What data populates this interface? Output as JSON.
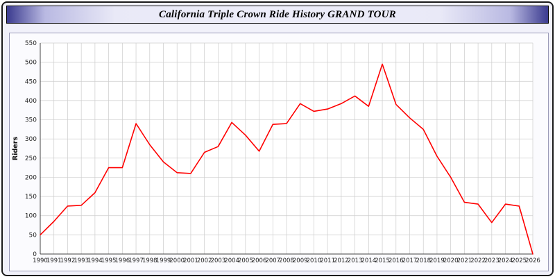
{
  "title_bar": {
    "title": "California Triple Crown Ride History GRAND TOUR"
  },
  "chart_data": {
    "type": "line",
    "title": "California Triple Crown Ride History GRAND TOUR",
    "xlabel": "",
    "ylabel": "Riders",
    "categories": [
      "1990",
      "1991",
      "1992",
      "1993",
      "1994",
      "1995",
      "1996",
      "1997",
      "1998",
      "1999",
      "2000",
      "2001",
      "2002",
      "2003",
      "2004",
      "2005",
      "2006",
      "2007",
      "2008",
      "2009",
      "2010",
      "2011",
      "2012",
      "2013",
      "2014",
      "2015",
      "2016",
      "2017",
      "2018",
      "2019",
      "2020",
      "2021",
      "2022",
      "2023",
      "2024",
      "2025",
      "2026"
    ],
    "values": [
      50,
      85,
      125,
      127,
      160,
      225,
      225,
      340,
      285,
      240,
      212,
      210,
      265,
      280,
      343,
      310,
      268,
      338,
      340,
      392,
      372,
      378,
      392,
      412,
      385,
      495,
      390,
      355,
      325,
      255,
      200,
      135,
      130,
      82,
      130,
      125,
      0
    ],
    "ylim": [
      0,
      550
    ],
    "ytick_step": 50,
    "grid": true,
    "legend_position": "none",
    "line_color": "#ff0000",
    "grid_color": "#cccccc",
    "axis_color": "#444444",
    "plot_background": "#ffffff"
  },
  "colors": {
    "page_background": "#f1f1fa",
    "frame_border": "#1a1a1a",
    "titlebar_edge": "#3b3b8f",
    "titlebar_center": "#eeeefa"
  }
}
